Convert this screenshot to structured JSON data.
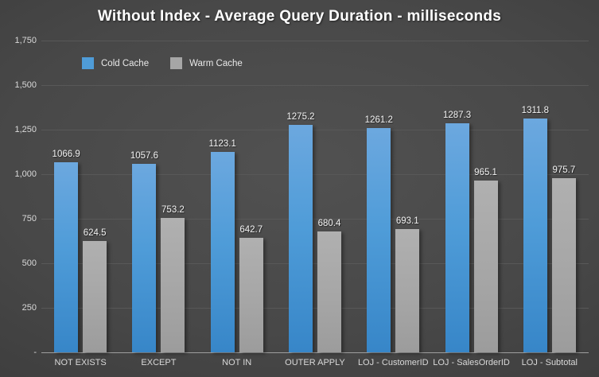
{
  "title": "Without Index - Average Query Duration - milliseconds",
  "colors": {
    "background_center": "#4d4d4d",
    "background_edge": "#262626",
    "cold_cache": "#4f9cd8",
    "warm_cache": "#a6a6a6",
    "gridline": "#585858",
    "axis_line": "#9e9e9e",
    "tick_text": "#d9d9d9",
    "data_label_text": "#f2f2f2",
    "title_text": "#ffffff"
  },
  "chart_data": {
    "type": "bar",
    "title": "Without Index - Average Query Duration - milliseconds",
    "xlabel": "",
    "ylabel": "",
    "categories": [
      "NOT EXISTS",
      "EXCEPT",
      "NOT IN",
      "OUTER APPLY",
      "LOJ - CustomerID",
      "LOJ - SalesOrderID",
      "LOJ - Subtotal"
    ],
    "series": [
      {
        "name": "Cold Cache",
        "color": "#4f9cd8",
        "values": [
          1066.9,
          1057.6,
          1123.1,
          1275.2,
          1261.2,
          1287.3,
          1311.8
        ]
      },
      {
        "name": "Warm Cache",
        "color": "#a6a6a6",
        "values": [
          624.5,
          753.2,
          642.7,
          680.4,
          693.1,
          965.1,
          975.7
        ]
      }
    ],
    "data_labels_shown": true,
    "ylim": [
      0,
      1750
    ],
    "ytick_step": 250,
    "ytick_labels": [
      "1,750",
      "1,500",
      "1,250",
      "1,000",
      "750",
      "500",
      "250",
      "-"
    ],
    "grid": true,
    "legend_position": "top-left"
  }
}
